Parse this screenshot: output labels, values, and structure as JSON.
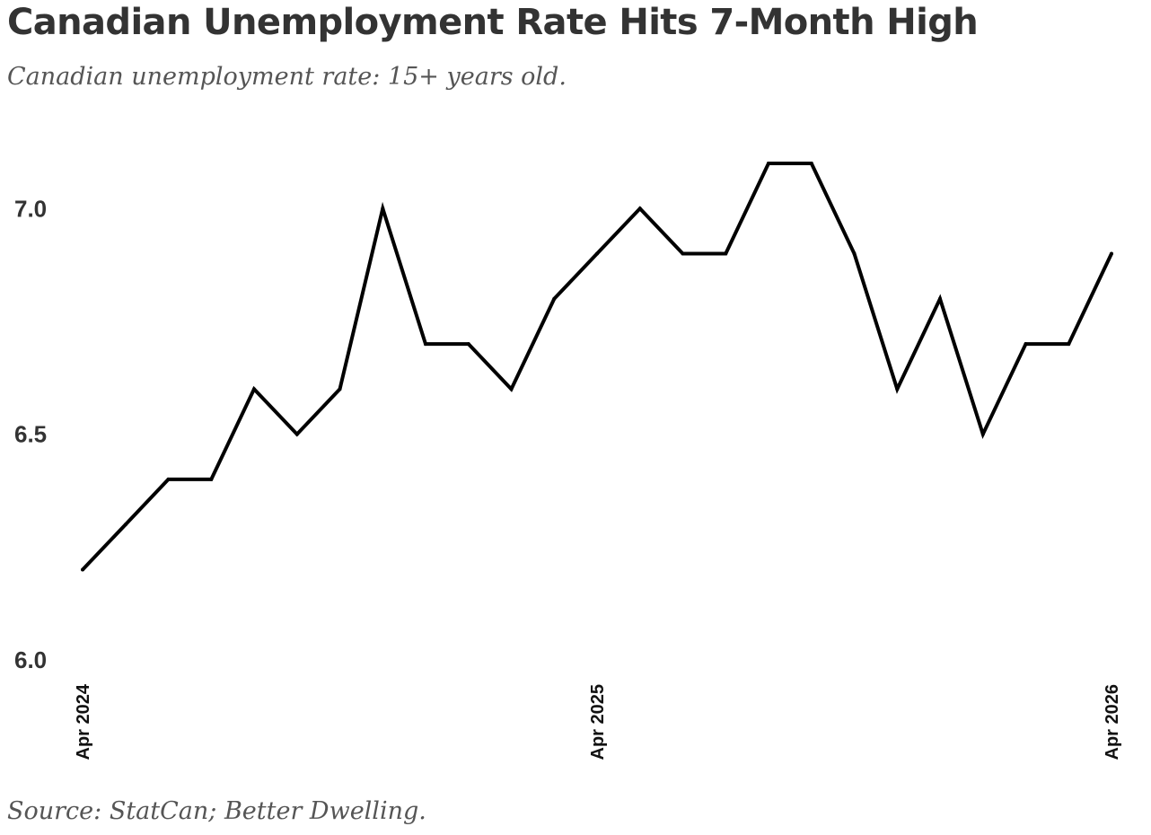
{
  "header": {
    "title": "Canadian Unemployment Rate Hits 7-Month High",
    "subtitle": "Canadian unemployment rate: 15+ years old."
  },
  "footer": {
    "source": "Source: StatCan; Better Dwelling."
  },
  "chart_data": {
    "type": "line",
    "x": [
      "2024-04",
      "2024-05",
      "2024-06",
      "2024-07",
      "2024-08",
      "2024-09",
      "2024-10",
      "2024-11",
      "2024-12",
      "2025-01",
      "2025-02",
      "2025-03",
      "2025-04",
      "2025-05",
      "2025-06",
      "2025-07",
      "2025-08",
      "2025-09",
      "2025-10",
      "2025-11",
      "2025-12",
      "2026-01",
      "2026-02",
      "2026-03",
      "2026-04"
    ],
    "series": [
      {
        "values": [
          6.2,
          6.3,
          6.4,
          6.4,
          6.6,
          6.5,
          6.6,
          7.0,
          6.7,
          6.7,
          6.6,
          6.8,
          6.9,
          7.0,
          6.9,
          6.9,
          7.1,
          7.1,
          6.9,
          6.6,
          6.8,
          6.5,
          6.7,
          6.7,
          6.9
        ],
        "color": "#000000"
      }
    ],
    "xticks": [
      {
        "index": 0,
        "label": "Apr 2024"
      },
      {
        "index": 12,
        "label": "Apr 2025"
      },
      {
        "index": 24,
        "label": "Apr 2026"
      }
    ],
    "yticks": [
      {
        "value": 6.0,
        "label": "6.0"
      },
      {
        "value": 6.5,
        "label": "6.5"
      },
      {
        "value": 7.0,
        "label": "7.0"
      }
    ],
    "ylim": [
      6.0,
      7.1
    ],
    "grid": false,
    "legend": "none",
    "xlabel": "",
    "ylabel": ""
  }
}
